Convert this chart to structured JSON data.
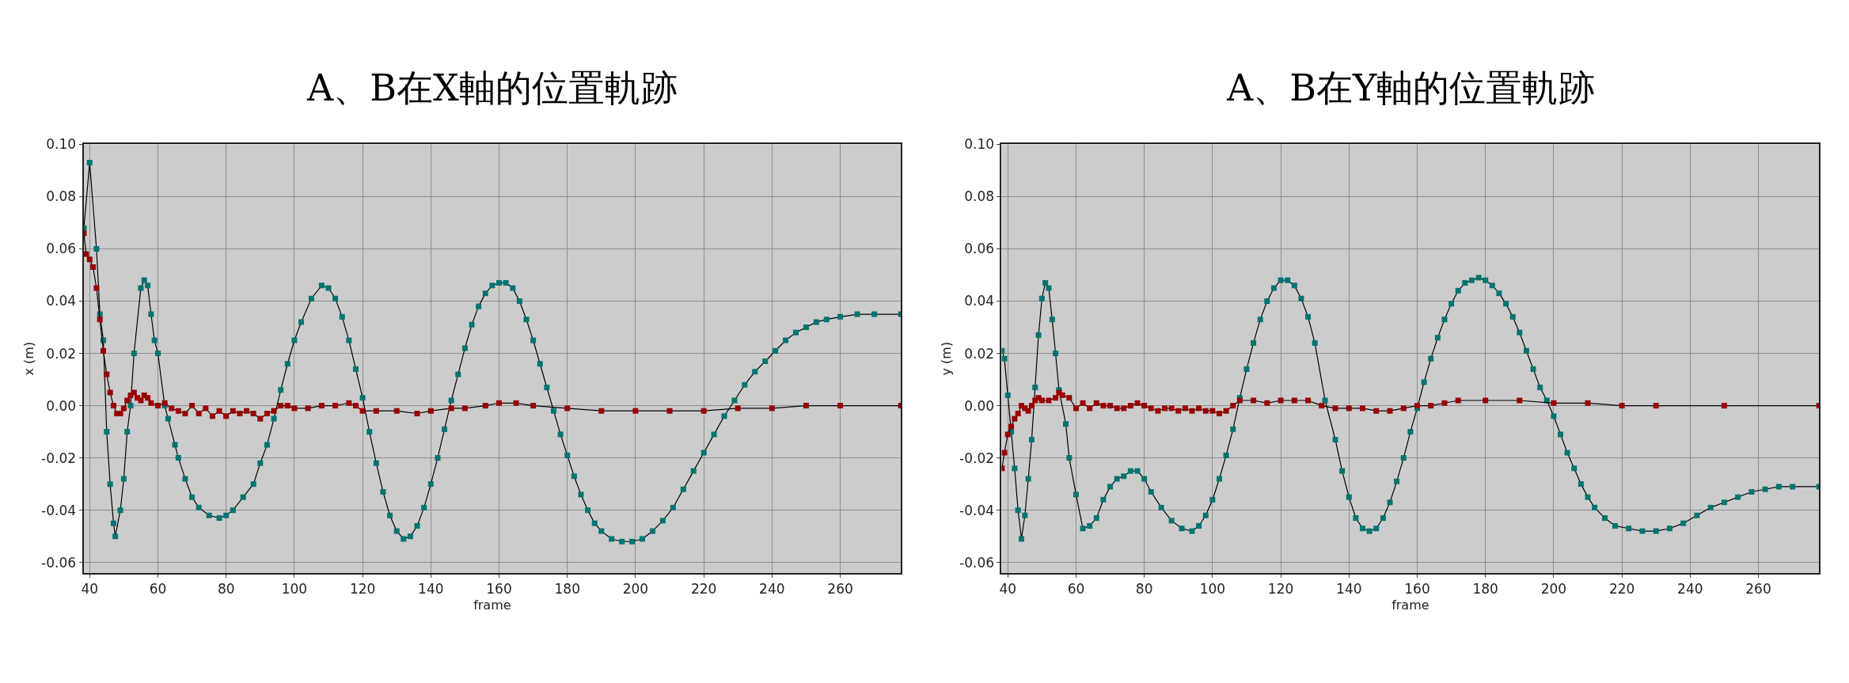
{
  "chart_data": [
    {
      "type": "line",
      "title": "A、B在X軸的位置軌跡",
      "xlabel": "frame",
      "ylabel": "x (m)",
      "xlim": [
        38.2,
        277.8
      ],
      "ylim": [
        -0.064,
        0.1
      ],
      "xticks": [
        40,
        60,
        80,
        100,
        120,
        140,
        160,
        180,
        200,
        220,
        240,
        260
      ],
      "yticks": [
        {
          "value": -0.06,
          "label": "-0.06"
        },
        {
          "value": -0.04,
          "label": "-0.04"
        },
        {
          "value": -0.02,
          "label": "-0.02"
        },
        {
          "value": 0,
          "label": "0.00"
        },
        {
          "value": 0.02,
          "label": "0.02"
        },
        {
          "value": 0.04,
          "label": "0.04"
        },
        {
          "value": 0.06,
          "label": "0.06"
        },
        {
          "value": 0.08,
          "label": "0.08"
        },
        {
          "value": 0.1,
          "label": "0.10"
        }
      ],
      "grid": true,
      "marker": "square",
      "line_style": "solid",
      "series": [
        {
          "color": "#007470",
          "x": [
            38.3,
            40,
            42,
            43,
            44,
            45,
            46,
            47,
            47.5,
            49,
            50,
            51,
            52,
            53,
            55,
            56,
            57,
            58,
            59,
            60,
            62,
            63,
            65,
            66,
            68,
            70,
            72,
            75,
            78,
            80,
            82,
            85,
            88,
            90,
            92,
            94,
            96,
            98,
            100,
            102,
            105,
            108,
            110,
            112,
            114,
            116,
            118,
            120,
            122,
            124,
            126,
            128,
            130,
            132,
            134,
            136,
            138,
            140,
            142,
            144,
            146,
            148,
            150,
            152,
            154,
            156,
            158,
            160,
            162,
            164,
            166,
            168,
            170,
            172,
            174,
            176,
            178,
            180,
            182,
            184,
            186,
            188,
            190,
            193,
            196,
            199,
            202,
            205,
            208,
            211,
            214,
            217,
            220,
            223,
            226,
            229,
            232,
            235,
            238,
            241,
            244,
            247,
            250,
            253,
            256,
            260,
            265,
            270,
            277.8
          ],
          "values": [
            0.068,
            0.093,
            0.06,
            0.035,
            0.025,
            -0.01,
            -0.03,
            -0.045,
            -0.05,
            -0.04,
            -0.028,
            -0.01,
            0.0,
            0.02,
            0.045,
            0.048,
            0.046,
            0.035,
            0.025,
            0.02,
            0.0,
            -0.005,
            -0.015,
            -0.02,
            -0.028,
            -0.035,
            -0.039,
            -0.042,
            -0.043,
            -0.042,
            -0.04,
            -0.035,
            -0.03,
            -0.022,
            -0.015,
            -0.005,
            0.006,
            0.016,
            0.025,
            0.032,
            0.041,
            0.046,
            0.045,
            0.041,
            0.034,
            0.025,
            0.014,
            0.003,
            -0.01,
            -0.022,
            -0.033,
            -0.042,
            -0.048,
            -0.051,
            -0.05,
            -0.046,
            -0.039,
            -0.03,
            -0.02,
            -0.009,
            0.002,
            0.012,
            0.022,
            0.031,
            0.038,
            0.043,
            0.046,
            0.047,
            0.047,
            0.045,
            0.04,
            0.033,
            0.025,
            0.016,
            0.007,
            -0.002,
            -0.011,
            -0.019,
            -0.027,
            -0.034,
            -0.04,
            -0.045,
            -0.048,
            -0.051,
            -0.052,
            -0.052,
            -0.051,
            -0.048,
            -0.044,
            -0.039,
            -0.032,
            -0.025,
            -0.018,
            -0.011,
            -0.004,
            0.002,
            0.008,
            0.013,
            0.017,
            0.021,
            0.025,
            0.028,
            0.03,
            0.032,
            0.033,
            0.034,
            0.035,
            0.035,
            0.035
          ]
        },
        {
          "color": "#990000",
          "x": [
            38.3,
            39,
            40,
            41,
            42,
            43,
            44,
            45,
            46,
            47,
            48,
            49,
            50,
            51,
            52,
            53,
            54,
            55,
            56,
            57,
            58,
            60,
            62,
            64,
            66,
            68,
            70,
            72,
            74,
            76,
            78,
            80,
            82,
            84,
            86,
            88,
            90,
            92,
            94,
            96,
            98,
            100,
            104,
            108,
            112,
            116,
            118,
            120,
            124,
            130,
            136,
            140,
            146,
            150,
            156,
            160,
            165,
            170,
            180,
            190,
            200,
            210,
            220,
            230,
            240,
            250,
            260,
            277.8
          ],
          "values": [
            0.066,
            0.058,
            0.056,
            0.053,
            0.045,
            0.033,
            0.021,
            0.012,
            0.005,
            0.0,
            -0.003,
            -0.003,
            -0.001,
            0.002,
            0.004,
            0.005,
            0.003,
            0.002,
            0.004,
            0.003,
            0.001,
            0.0,
            0.001,
            -0.001,
            -0.002,
            -0.003,
            0.0,
            -0.003,
            -0.001,
            -0.004,
            -0.002,
            -0.004,
            -0.002,
            -0.003,
            -0.002,
            -0.003,
            -0.005,
            -0.003,
            -0.002,
            0.0,
            0.0,
            -0.001,
            -0.001,
            0.0,
            0.0,
            0.001,
            0.0,
            -0.002,
            -0.002,
            -0.002,
            -0.003,
            -0.002,
            -0.001,
            -0.001,
            0.0,
            0.001,
            0.001,
            0.0,
            -0.001,
            -0.002,
            -0.002,
            -0.002,
            -0.002,
            -0.001,
            -0.001,
            0.0,
            0.0,
            0.0
          ]
        }
      ]
    },
    {
      "type": "line",
      "title": "A、B在Y軸的位置軌跡",
      "xlabel": "frame",
      "ylabel": "y (m)",
      "xlim": [
        38.2,
        277.8
      ],
      "ylim": [
        -0.064,
        0.1
      ],
      "xticks": [
        40,
        60,
        80,
        100,
        120,
        140,
        160,
        180,
        200,
        220,
        240,
        260
      ],
      "yticks": [
        {
          "value": -0.06,
          "label": "-0.06"
        },
        {
          "value": -0.04,
          "label": "-0.04"
        },
        {
          "value": -0.02,
          "label": "-0.02"
        },
        {
          "value": 0,
          "label": "0.00"
        },
        {
          "value": 0.02,
          "label": "0.02"
        },
        {
          "value": 0.04,
          "label": "0.04"
        },
        {
          "value": 0.06,
          "label": "0.06"
        },
        {
          "value": 0.08,
          "label": "0.08"
        },
        {
          "value": 0.1,
          "label": "0.10"
        }
      ],
      "grid": true,
      "marker": "square",
      "line_style": "solid",
      "series": [
        {
          "color": "#007470",
          "x": [
            38.3,
            39,
            40,
            41,
            42,
            43,
            44,
            45,
            46,
            47,
            48,
            49,
            50,
            51,
            52,
            53,
            54,
            55,
            57,
            58,
            60,
            62,
            64,
            66,
            68,
            70,
            72,
            74,
            76,
            78,
            80,
            82,
            85,
            88,
            91,
            94,
            96,
            98,
            100,
            102,
            104,
            106,
            108,
            110,
            112,
            114,
            116,
            118,
            120,
            122,
            124,
            126,
            128,
            130,
            133,
            136,
            138,
            140,
            142,
            144,
            146,
            148,
            150,
            152,
            154,
            156,
            158,
            160,
            162,
            164,
            166,
            168,
            170,
            172,
            174,
            176,
            178,
            180,
            182,
            184,
            186,
            188,
            190,
            192,
            194,
            196,
            198,
            200,
            202,
            204,
            206,
            208,
            210,
            212,
            215,
            218,
            222,
            226,
            230,
            234,
            238,
            242,
            246,
            250,
            254,
            258,
            262,
            266,
            270,
            277.8
          ],
          "values": [
            0.021,
            0.018,
            0.004,
            -0.01,
            -0.024,
            -0.04,
            -0.051,
            -0.042,
            -0.028,
            -0.013,
            0.007,
            0.027,
            0.041,
            0.047,
            0.045,
            0.033,
            0.02,
            0.006,
            -0.007,
            -0.02,
            -0.034,
            -0.047,
            -0.046,
            -0.043,
            -0.036,
            -0.031,
            -0.028,
            -0.027,
            -0.025,
            -0.025,
            -0.028,
            -0.033,
            -0.039,
            -0.044,
            -0.047,
            -0.048,
            -0.046,
            -0.042,
            -0.036,
            -0.028,
            -0.019,
            -0.009,
            0.003,
            0.014,
            0.024,
            0.033,
            0.04,
            0.045,
            0.048,
            0.048,
            0.046,
            0.041,
            0.034,
            0.024,
            0.002,
            -0.013,
            -0.025,
            -0.035,
            -0.043,
            -0.047,
            -0.048,
            -0.047,
            -0.043,
            -0.037,
            -0.029,
            -0.02,
            -0.01,
            -0.001,
            0.009,
            0.018,
            0.026,
            0.033,
            0.039,
            0.044,
            0.047,
            0.048,
            0.049,
            0.048,
            0.046,
            0.043,
            0.039,
            0.034,
            0.028,
            0.021,
            0.014,
            0.007,
            0.002,
            -0.004,
            -0.011,
            -0.018,
            -0.024,
            -0.03,
            -0.035,
            -0.039,
            -0.043,
            -0.046,
            -0.047,
            -0.048,
            -0.048,
            -0.047,
            -0.045,
            -0.042,
            -0.039,
            -0.037,
            -0.035,
            -0.033,
            -0.032,
            -0.031,
            -0.031,
            -0.031
          ]
        },
        {
          "color": "#990000",
          "x": [
            38.3,
            39,
            40,
            41,
            42,
            43,
            44,
            45,
            46,
            47,
            48,
            49,
            50,
            52,
            54,
            55,
            56,
            58,
            60,
            62,
            64,
            66,
            68,
            70,
            72,
            74,
            76,
            78,
            80,
            82,
            84,
            86,
            88,
            90,
            92,
            94,
            96,
            98,
            100,
            102,
            104,
            106,
            108,
            112,
            116,
            120,
            124,
            128,
            132,
            136,
            140,
            144,
            148,
            152,
            156,
            160,
            164,
            168,
            172,
            180,
            190,
            200,
            210,
            220,
            230,
            250,
            277.8
          ],
          "values": [
            -0.024,
            -0.018,
            -0.011,
            -0.008,
            -0.005,
            -0.003,
            0.0,
            -0.001,
            -0.002,
            0.0,
            0.002,
            0.003,
            0.002,
            0.002,
            0.003,
            0.005,
            0.004,
            0.003,
            -0.001,
            0.001,
            -0.001,
            0.001,
            0.0,
            0.0,
            -0.001,
            -0.001,
            0.0,
            0.001,
            0.0,
            -0.001,
            -0.002,
            -0.001,
            -0.001,
            -0.002,
            -0.001,
            -0.002,
            -0.001,
            -0.002,
            -0.002,
            -0.003,
            -0.002,
            0.0,
            0.002,
            0.002,
            0.001,
            0.002,
            0.002,
            0.002,
            0.0,
            -0.001,
            -0.001,
            -0.001,
            -0.002,
            -0.002,
            -0.001,
            0.0,
            0.0,
            0.001,
            0.002,
            0.002,
            0.002,
            0.001,
            0.001,
            0.0,
            0.0,
            0.0,
            0.0
          ]
        }
      ]
    }
  ]
}
